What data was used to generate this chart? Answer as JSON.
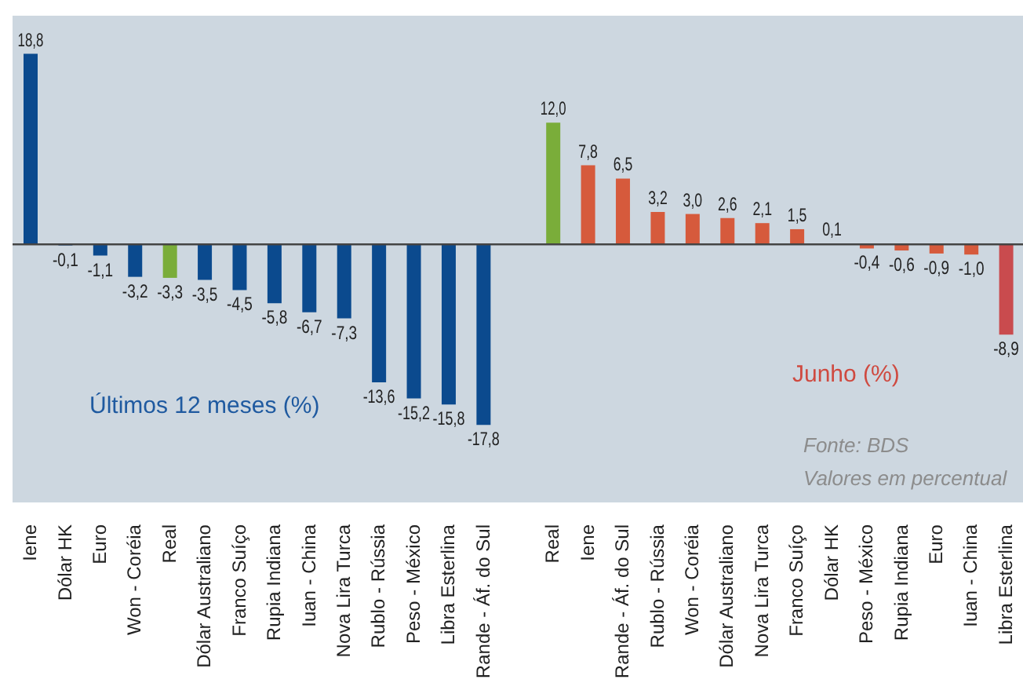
{
  "chart_data": {
    "type": "bar",
    "categories": [
      "Iene",
      "Dólar HK",
      "Euro",
      "Won - Coréia",
      "Real",
      "Dólar Australiano",
      "Franco Suíço",
      "Rupia Indiana",
      "Iuan - China",
      "Nova Lira Turca",
      "Rublo - Rússia",
      "Peso - México",
      "Libra Esterlina",
      "Rande - Áf. do Sul",
      null,
      "Real",
      "Iene",
      "Rande - Áf. do Sul",
      "Rublo - Rússia",
      "Won - Coréia",
      "Dólar Australiano",
      "Nova Lira Turca",
      "Franco Suíço",
      "Dólar HK",
      "Peso - México",
      "Rupia Indiana",
      "Euro",
      "Iuan - China",
      "Libra Esterlina"
    ],
    "values": [
      18.8,
      -0.1,
      -1.1,
      -3.2,
      -3.3,
      -3.5,
      -4.5,
      -5.8,
      -6.7,
      -7.3,
      -13.6,
      -15.2,
      -15.8,
      -17.8,
      null,
      12.0,
      7.8,
      6.5,
      3.2,
      3.0,
      2.6,
      2.1,
      1.5,
      0.1,
      -0.4,
      -0.6,
      -0.9,
      -1.0,
      -8.9
    ],
    "value_labels": [
      "18,8",
      "-0,1",
      "-1,1",
      "-3,2",
      "-3,3",
      "-3,5",
      "-4,5",
      "-5,8",
      "-6,7",
      "-7,3",
      "-13,6",
      "-15,2",
      "-15,8",
      "-17,8",
      null,
      "12,0",
      "7,8",
      "6,5",
      "3,2",
      "3,0",
      "2,6",
      "2,1",
      "1,5",
      "0,1",
      "-0,4",
      "-0,6",
      "-0,9",
      "-1,0",
      "-8,9"
    ],
    "colors": [
      "#0b4a8e",
      "#0b4a8e",
      "#0b4a8e",
      "#0b4a8e",
      "#7aad3a",
      "#0b4a8e",
      "#0b4a8e",
      "#0b4a8e",
      "#0b4a8e",
      "#0b4a8e",
      "#0b4a8e",
      "#0b4a8e",
      "#0b4a8e",
      "#0b4a8e",
      null,
      "#7aad3a",
      "#d65a3c",
      "#d65a3c",
      "#d65a3c",
      "#d65a3c",
      "#d65a3c",
      "#d65a3c",
      "#d65a3c",
      "#d65a3c",
      "#d65a3c",
      "#d65a3c",
      "#d65a3c",
      "#d65a3c",
      "#c94b4e"
    ],
    "annotations": [
      "Últimos 12 meses (%)",
      "Junho (%)",
      "Fonte: BDS",
      "Valores em percentual"
    ],
    "grid": false,
    "legend": false
  }
}
